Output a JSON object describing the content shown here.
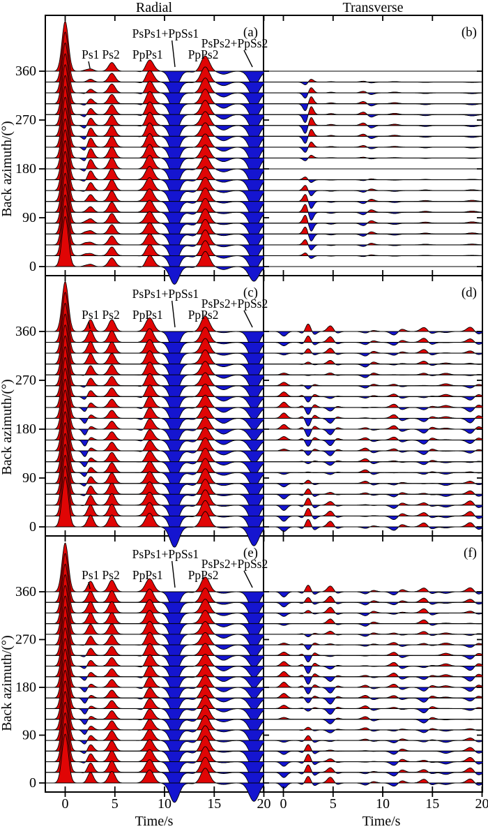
{
  "figure": {
    "column_titles": [
      "Radial",
      "Transverse"
    ],
    "x_label": "Time/s",
    "y_label": "Back azimuth/(°)",
    "panel_letters": [
      "(a)",
      "(b)",
      "(c)",
      "(d)",
      "(e)",
      "(f)"
    ]
  },
  "chart_data": {
    "type": "area",
    "description": "Synthetic receiver-function record sections: three model rows, Radial and Transverse components, traces plotted versus back azimuth (0-360 deg, every 20 deg). Positive pulses filled red, negative filled blue. Amplitude(az) = a0 + A*cos(k*(az-phi) deg), Gaussian pulse of width s centered at time t (seconds). Amplitude unit = one trace spacing.",
    "axes": {
      "x_label": "Time/s",
      "y_label": "Back azimuth/(°)",
      "x_ticks": [
        0,
        5,
        10,
        15,
        20
      ],
      "y_ticks": [
        0,
        90,
        180,
        270,
        360
      ],
      "x_range": [
        -2,
        20.2
      ],
      "azimuth_min": 0,
      "azimuth_max": 360,
      "azimuth_step": 20
    },
    "colors": {
      "positive_fill": "#e00505",
      "negative_fill": "#1515d0",
      "line": "#000000"
    },
    "phase_labels": [
      {
        "text": "Ps1",
        "t": 2.55,
        "y": 62,
        "line": {
          "t1": 2.35,
          "y1": 66,
          "t2": 2.5,
          "y2": 76
        }
      },
      {
        "text": "Ps2",
        "t": 4.6,
        "y": 62
      },
      {
        "text": "PpPs1",
        "t": 8.3,
        "y": 62
      },
      {
        "text": "PsPs1+PpSs1",
        "t": 10.1,
        "y": 32,
        "line": {
          "t1": 10.75,
          "y1": 36,
          "t2": 11.05,
          "y2": 74
        }
      },
      {
        "text": "PpPs2",
        "t": 13.9,
        "y": 62
      },
      {
        "text": "PsPs2+PpSs2",
        "t": 17.05,
        "y": 46,
        "line": {
          "t1": 18.0,
          "y1": 50,
          "t2": 18.85,
          "y2": 74
        }
      }
    ],
    "panels": [
      {
        "id": "a",
        "letter": "(a)",
        "component": "Radial",
        "row": 0,
        "col": 0,
        "arrivals": [
          {
            "t": 0.0,
            "s": 0.32,
            "a0": 4.6
          },
          {
            "t": 2.0,
            "s": 0.24,
            "a0": -0.12,
            "A": -0.28,
            "phi": 225
          },
          {
            "t": 2.55,
            "s": 0.3,
            "a0": 0.55,
            "A": 0.35,
            "phi": 195
          },
          {
            "t": 4.7,
            "s": 0.33,
            "a0": 0.92,
            "A": 0.12,
            "phi": 180
          },
          {
            "t": 7.85,
            "s": 0.3,
            "a0": -0.1,
            "A": -0.15,
            "phi": 300
          },
          {
            "t": 8.5,
            "s": 0.4,
            "a0": 1.15,
            "A": 0.12,
            "phi": 210
          },
          {
            "t": 11.0,
            "s": 0.46,
            "a0": -1.75,
            "A": -0.12,
            "phi": 180
          },
          {
            "t": 12.9,
            "s": 0.4,
            "a0": -0.1,
            "A": -0.1,
            "phi": 90
          },
          {
            "t": 14.1,
            "s": 0.42,
            "a0": 1.3,
            "A": 0.1,
            "phi": 0
          },
          {
            "t": 15.95,
            "s": 0.5,
            "a0": -0.28,
            "A": -0.15,
            "phi": 270
          },
          {
            "t": 19.0,
            "s": 0.5,
            "a0": -1.5,
            "A": -0.15,
            "phi": 180
          }
        ]
      },
      {
        "id": "b",
        "letter": "(b)",
        "component": "Transverse",
        "row": 0,
        "col": 1,
        "arrivals": [
          {
            "t": 2.25,
            "s": 0.26,
            "A": 0.85,
            "phi": 90
          },
          {
            "t": 2.75,
            "s": 0.26,
            "A": -0.85,
            "phi": 90
          },
          {
            "t": 4.8,
            "s": 0.3,
            "A": 0.1,
            "phi": 270
          },
          {
            "t": 8.1,
            "s": 0.34,
            "A": -0.26,
            "phi": 90
          },
          {
            "t": 8.8,
            "s": 0.34,
            "A": 0.26,
            "phi": 90
          },
          {
            "t": 11.2,
            "s": 0.4,
            "A": -0.12,
            "phi": 90
          },
          {
            "t": 14.3,
            "s": 0.4,
            "A": 0.1,
            "phi": 90
          },
          {
            "t": 19.0,
            "s": 0.45,
            "A": 0.12,
            "phi": 90
          }
        ]
      },
      {
        "id": "c",
        "letter": "(c)",
        "component": "Radial",
        "row": 1,
        "col": 0,
        "arrivals": [
          {
            "t": 0.0,
            "s": 0.32,
            "a0": 4.6
          },
          {
            "t": 2.0,
            "s": 0.24,
            "a0": -0.28,
            "A": -0.32,
            "phi": 160
          },
          {
            "t": 2.55,
            "s": 0.3,
            "a0": 0.68,
            "A": 0.42,
            "phi": 345
          },
          {
            "t": 4.7,
            "s": 0.33,
            "a0": 0.92,
            "A": 0.18,
            "phi": 10
          },
          {
            "t": 7.85,
            "s": 0.3,
            "a0": -0.12,
            "A": -0.15,
            "phi": 200
          },
          {
            "t": 8.5,
            "s": 0.4,
            "a0": 1.12,
            "A": 0.15,
            "phi": 340
          },
          {
            "t": 11.0,
            "s": 0.46,
            "a0": -1.7,
            "A": -0.2,
            "phi": 330
          },
          {
            "t": 12.9,
            "s": 0.4,
            "a0": -0.1,
            "A": -0.12,
            "phi": 120
          },
          {
            "t": 14.1,
            "s": 0.42,
            "a0": 1.28,
            "A": 0.15,
            "phi": 20
          },
          {
            "t": 15.95,
            "s": 0.5,
            "a0": -0.28,
            "A": -0.18,
            "phi": 200
          },
          {
            "t": 19.0,
            "s": 0.5,
            "a0": -1.4,
            "A": -0.35,
            "phi": 0
          }
        ]
      },
      {
        "id": "d",
        "letter": "(d)",
        "component": "Transverse",
        "row": 1,
        "col": 1,
        "arrivals": [
          {
            "t": 0.05,
            "s": 0.3,
            "A": 0.5,
            "phi": 210
          },
          {
            "t": 2.0,
            "s": 0.24,
            "A": -0.28,
            "phi": 15
          },
          {
            "t": 2.5,
            "s": 0.3,
            "A": 0.8,
            "phi": 15
          },
          {
            "t": 3.05,
            "s": 0.28,
            "A": -0.38,
            "phi": 15
          },
          {
            "t": 4.75,
            "s": 0.32,
            "A": 0.55,
            "phi": 350
          },
          {
            "t": 5.35,
            "s": 0.3,
            "A": -0.2,
            "phi": 350
          },
          {
            "t": 8.3,
            "s": 0.36,
            "A": 0.3,
            "phi": 120
          },
          {
            "t": 9.0,
            "s": 0.34,
            "A": -0.22,
            "phi": 120
          },
          {
            "t": 11.2,
            "s": 0.38,
            "A": 0.38,
            "phi": 195
          },
          {
            "t": 11.85,
            "s": 0.36,
            "A": -0.28,
            "phi": 195
          },
          {
            "t": 14.2,
            "s": 0.38,
            "A": 0.42,
            "phi": 345
          },
          {
            "t": 14.85,
            "s": 0.36,
            "A": -0.25,
            "phi": 345
          },
          {
            "t": 16.35,
            "s": 0.4,
            "A": -0.2,
            "phi": 60
          },
          {
            "t": 18.9,
            "s": 0.4,
            "A": 0.5,
            "phi": 20
          },
          {
            "t": 19.5,
            "s": 0.38,
            "A": -0.35,
            "phi": 20
          }
        ]
      },
      {
        "id": "e",
        "letter": "(e)",
        "component": "Radial",
        "row": 2,
        "col": 0,
        "arrivals": [
          {
            "t": 0.0,
            "s": 0.32,
            "a0": 4.6
          },
          {
            "t": 2.0,
            "s": 0.24,
            "a0": -0.26,
            "A": -0.3,
            "phi": 140
          },
          {
            "t": 2.55,
            "s": 0.3,
            "a0": 0.66,
            "A": 0.4,
            "phi": 325
          },
          {
            "t": 4.7,
            "s": 0.33,
            "a0": 0.92,
            "A": 0.18,
            "phi": 350
          },
          {
            "t": 7.85,
            "s": 0.3,
            "a0": -0.12,
            "A": -0.15,
            "phi": 180
          },
          {
            "t": 8.5,
            "s": 0.4,
            "a0": 1.12,
            "A": 0.15,
            "phi": 320
          },
          {
            "t": 11.0,
            "s": 0.46,
            "a0": -1.7,
            "A": -0.2,
            "phi": 310
          },
          {
            "t": 12.9,
            "s": 0.4,
            "a0": -0.1,
            "A": -0.12,
            "phi": 100
          },
          {
            "t": 14.1,
            "s": 0.42,
            "a0": 1.28,
            "A": 0.15,
            "phi": 40
          },
          {
            "t": 15.95,
            "s": 0.5,
            "a0": -0.28,
            "A": -0.18,
            "phi": 220
          },
          {
            "t": 19.0,
            "s": 0.5,
            "a0": -1.4,
            "A": -0.35,
            "phi": 20
          }
        ]
      },
      {
        "id": "f",
        "letter": "(f)",
        "component": "Transverse",
        "row": 2,
        "col": 1,
        "arrivals": [
          {
            "t": 0.05,
            "s": 0.3,
            "A": 0.5,
            "phi": 190
          },
          {
            "t": 2.0,
            "s": 0.24,
            "A": -0.28,
            "phi": 30
          },
          {
            "t": 2.5,
            "s": 0.3,
            "A": 0.8,
            "phi": 30
          },
          {
            "t": 3.05,
            "s": 0.28,
            "A": -0.38,
            "phi": 30
          },
          {
            "t": 4.75,
            "s": 0.32,
            "A": 0.6,
            "phi": 340
          },
          {
            "t": 5.35,
            "s": 0.3,
            "A": -0.2,
            "phi": 340
          },
          {
            "t": 8.3,
            "s": 0.36,
            "A": 0.28,
            "phi": 140
          },
          {
            "t": 9.0,
            "s": 0.34,
            "A": -0.2,
            "phi": 140
          },
          {
            "t": 11.2,
            "s": 0.38,
            "A": 0.4,
            "phi": 210
          },
          {
            "t": 11.85,
            "s": 0.36,
            "A": -0.3,
            "phi": 210
          },
          {
            "t": 14.2,
            "s": 0.38,
            "A": 0.45,
            "phi": 330
          },
          {
            "t": 14.85,
            "s": 0.36,
            "A": -0.26,
            "phi": 330
          },
          {
            "t": 16.35,
            "s": 0.4,
            "A": -0.22,
            "phi": 45
          },
          {
            "t": 18.9,
            "s": 0.4,
            "A": 0.5,
            "phi": 25
          },
          {
            "t": 19.5,
            "s": 0.38,
            "A": -0.35,
            "phi": 25
          }
        ]
      }
    ]
  }
}
